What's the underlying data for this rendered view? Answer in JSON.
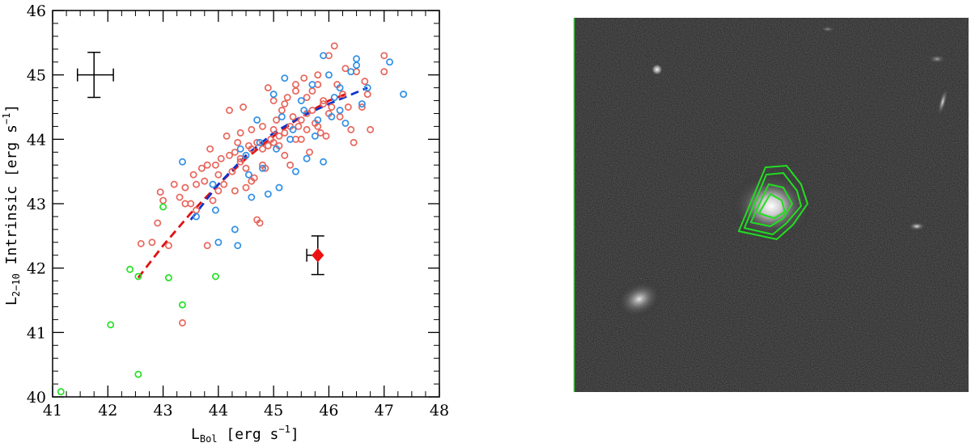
{
  "chart_data": {
    "type": "scatter",
    "title": "",
    "xlabel_main": "L",
    "xlabel_sub": "Bol",
    "xlabel_unit": " [erg s",
    "xlabel_exp": "−1",
    "xlabel_close": "]",
    "ylabel_main": "L",
    "ylabel_sub": "2−10",
    "ylabel_rest": " Intrinsic [erg s",
    "ylabel_exp": "−1",
    "ylabel_close": "]",
    "xlim": [
      41,
      48
    ],
    "ylim": [
      40,
      46
    ],
    "x_ticks": [
      41,
      42,
      43,
      44,
      45,
      46,
      47,
      48
    ],
    "y_ticks": [
      40,
      41,
      42,
      43,
      44,
      45,
      46
    ],
    "x_tick_labels": [
      "41",
      "42",
      "43",
      "44",
      "45",
      "46",
      "47",
      "48"
    ],
    "y_tick_labels": [
      "40",
      "41",
      "42",
      "43",
      "44",
      "45",
      "46"
    ],
    "grid": false,
    "colors": {
      "red_series": "#e8665c",
      "blue_series": "#2f8fe6",
      "green_series": "#22e022",
      "highlight": "#ee1111",
      "red_fit": "#dd1111",
      "blue_fit": "#1133cc",
      "contour": "#22dd22"
    },
    "series": [
      {
        "color_key": "red_series",
        "points": [
          [
            42.6,
            42.38
          ],
          [
            42.8,
            42.4
          ],
          [
            43.1,
            42.35
          ],
          [
            43.35,
            41.15
          ],
          [
            42.9,
            42.7
          ],
          [
            43.0,
            43.05
          ],
          [
            42.95,
            43.18
          ],
          [
            43.2,
            43.3
          ],
          [
            43.3,
            43.1
          ],
          [
            43.4,
            43.25
          ],
          [
            43.5,
            43.0
          ],
          [
            43.55,
            43.45
          ],
          [
            43.6,
            42.9
          ],
          [
            43.7,
            43.55
          ],
          [
            43.75,
            43.35
          ],
          [
            43.8,
            42.35
          ],
          [
            43.85,
            43.85
          ],
          [
            43.9,
            43.05
          ],
          [
            43.95,
            43.6
          ],
          [
            44.0,
            43.45
          ],
          [
            44.05,
            43.7
          ],
          [
            44.1,
            43.3
          ],
          [
            44.15,
            44.05
          ],
          [
            44.2,
            44.45
          ],
          [
            44.25,
            43.5
          ],
          [
            44.3,
            43.8
          ],
          [
            44.35,
            43.95
          ],
          [
            44.4,
            43.65
          ],
          [
            44.45,
            44.5
          ],
          [
            44.5,
            43.25
          ],
          [
            44.55,
            43.9
          ],
          [
            44.6,
            44.15
          ],
          [
            44.65,
            43.4
          ],
          [
            44.7,
            42.75
          ],
          [
            44.75,
            42.7
          ],
          [
            44.8,
            44.2
          ],
          [
            44.85,
            43.55
          ],
          [
            44.9,
            44.8
          ],
          [
            44.95,
            44.0
          ],
          [
            45.0,
            44.6
          ],
          [
            45.05,
            44.3
          ],
          [
            45.1,
            43.9
          ],
          [
            45.15,
            44.45
          ],
          [
            45.2,
            44.1
          ],
          [
            45.25,
            44.65
          ],
          [
            45.3,
            43.6
          ],
          [
            45.35,
            44.35
          ],
          [
            45.4,
            44.85
          ],
          [
            45.45,
            44.2
          ],
          [
            45.5,
            44.0
          ],
          [
            45.55,
            44.95
          ],
          [
            45.6,
            44.4
          ],
          [
            45.65,
            43.8
          ],
          [
            45.7,
            44.75
          ],
          [
            45.75,
            44.25
          ],
          [
            45.8,
            45.0
          ],
          [
            45.85,
            44.1
          ],
          [
            45.9,
            44.6
          ],
          [
            45.95,
            44.05
          ],
          [
            46.0,
            45.3
          ],
          [
            46.05,
            44.5
          ],
          [
            46.1,
            45.45
          ],
          [
            46.15,
            44.85
          ],
          [
            46.2,
            44.35
          ],
          [
            46.25,
            44.7
          ],
          [
            46.3,
            45.1
          ],
          [
            46.35,
            44.5
          ],
          [
            46.4,
            44.15
          ],
          [
            46.45,
            43.95
          ],
          [
            46.5,
            45.05
          ],
          [
            46.6,
            44.5
          ],
          [
            46.65,
            44.9
          ],
          [
            46.7,
            44.7
          ],
          [
            46.75,
            44.15
          ],
          [
            47.0,
            45.3
          ],
          [
            47.0,
            45.05
          ],
          [
            44.3,
            43.2
          ],
          [
            44.4,
            43.7
          ],
          [
            44.5,
            43.55
          ],
          [
            44.6,
            43.85
          ],
          [
            44.7,
            43.95
          ],
          [
            44.8,
            43.6
          ],
          [
            44.9,
            43.9
          ],
          [
            45.0,
            43.95
          ],
          [
            45.1,
            44.05
          ],
          [
            45.2,
            43.75
          ],
          [
            45.3,
            44.2
          ],
          [
            45.4,
            44.0
          ],
          [
            45.5,
            44.3
          ],
          [
            45.6,
            44.15
          ],
          [
            45.7,
            44.45
          ],
          [
            45.8,
            44.2
          ],
          [
            45.9,
            44.55
          ],
          [
            46.0,
            44.4
          ],
          [
            43.4,
            43.0
          ],
          [
            43.6,
            43.3
          ],
          [
            43.8,
            43.6
          ],
          [
            44.0,
            43.2
          ],
          [
            44.2,
            43.75
          ],
          [
            44.4,
            44.1
          ],
          [
            44.6,
            43.35
          ],
          [
            44.8,
            43.85
          ],
          [
            45.0,
            44.15
          ],
          [
            45.2,
            44.55
          ],
          [
            45.4,
            44.75
          ],
          [
            45.6,
            44.65
          ],
          [
            45.8,
            44.85
          ]
        ]
      },
      {
        "color_key": "blue_series",
        "points": [
          [
            43.35,
            43.65
          ],
          [
            43.6,
            42.8
          ],
          [
            43.9,
            43.3
          ],
          [
            43.95,
            42.9
          ],
          [
            44.0,
            42.4
          ],
          [
            44.3,
            42.6
          ],
          [
            44.35,
            42.35
          ],
          [
            44.5,
            43.75
          ],
          [
            44.6,
            43.1
          ],
          [
            44.7,
            44.3
          ],
          [
            44.8,
            43.55
          ],
          [
            44.9,
            43.15
          ],
          [
            45.0,
            44.7
          ],
          [
            45.05,
            43.85
          ],
          [
            45.1,
            43.25
          ],
          [
            45.2,
            44.95
          ],
          [
            45.3,
            44.0
          ],
          [
            45.4,
            43.5
          ],
          [
            45.5,
            44.6
          ],
          [
            45.6,
            43.7
          ],
          [
            45.7,
            44.85
          ],
          [
            45.8,
            44.3
          ],
          [
            45.9,
            43.65
          ],
          [
            46.0,
            45.0
          ],
          [
            46.1,
            44.65
          ],
          [
            46.2,
            44.8
          ],
          [
            46.3,
            44.25
          ],
          [
            46.4,
            45.05
          ],
          [
            46.5,
            45.25
          ],
          [
            46.6,
            44.55
          ],
          [
            46.7,
            44.8
          ],
          [
            47.1,
            45.2
          ],
          [
            47.35,
            44.7
          ],
          [
            45.9,
            45.3
          ],
          [
            46.5,
            45.15
          ],
          [
            46.2,
            44.45
          ],
          [
            45.55,
            44.45
          ],
          [
            44.55,
            43.45
          ],
          [
            44.4,
            43.85
          ],
          [
            44.75,
            43.95
          ],
          [
            45.15,
            44.35
          ],
          [
            45.35,
            44.15
          ],
          [
            45.75,
            44.05
          ],
          [
            46.05,
            44.35
          ]
        ]
      },
      {
        "color_key": "green_series",
        "points": [
          [
            41.15,
            40.08
          ],
          [
            42.05,
            41.12
          ],
          [
            42.4,
            41.98
          ],
          [
            42.55,
            41.87
          ],
          [
            42.55,
            40.35
          ],
          [
            43.0,
            42.95
          ],
          [
            43.1,
            41.85
          ],
          [
            43.35,
            41.43
          ],
          [
            43.95,
            41.87
          ]
        ]
      }
    ],
    "highlight_point": {
      "x": 45.8,
      "y": 42.2,
      "xerr": [
        0.2,
        0.0
      ],
      "yerr": [
        0.3,
        0.3
      ]
    },
    "error_bar_example": {
      "x": 41.75,
      "y": 45.0,
      "xerr": [
        0.3,
        0.35
      ],
      "yerr": [
        0.35,
        0.35
      ]
    },
    "fit_lines": [
      {
        "color_key": "red_fit",
        "x": [
          42.55,
          43.0,
          43.5,
          44.0,
          44.5,
          45.0,
          45.5,
          46.0,
          46.3
        ],
        "y": [
          41.85,
          42.35,
          42.85,
          43.3,
          43.7,
          44.05,
          44.35,
          44.6,
          44.7
        ]
      },
      {
        "color_key": "blue_fit",
        "x": [
          43.5,
          44.0,
          44.5,
          45.0,
          45.5,
          46.0,
          46.7
        ],
        "y": [
          42.75,
          43.3,
          43.75,
          44.1,
          44.35,
          44.55,
          44.8
        ]
      }
    ]
  },
  "image_panel": {
    "description_icon": "galaxy-image-with-contours"
  }
}
